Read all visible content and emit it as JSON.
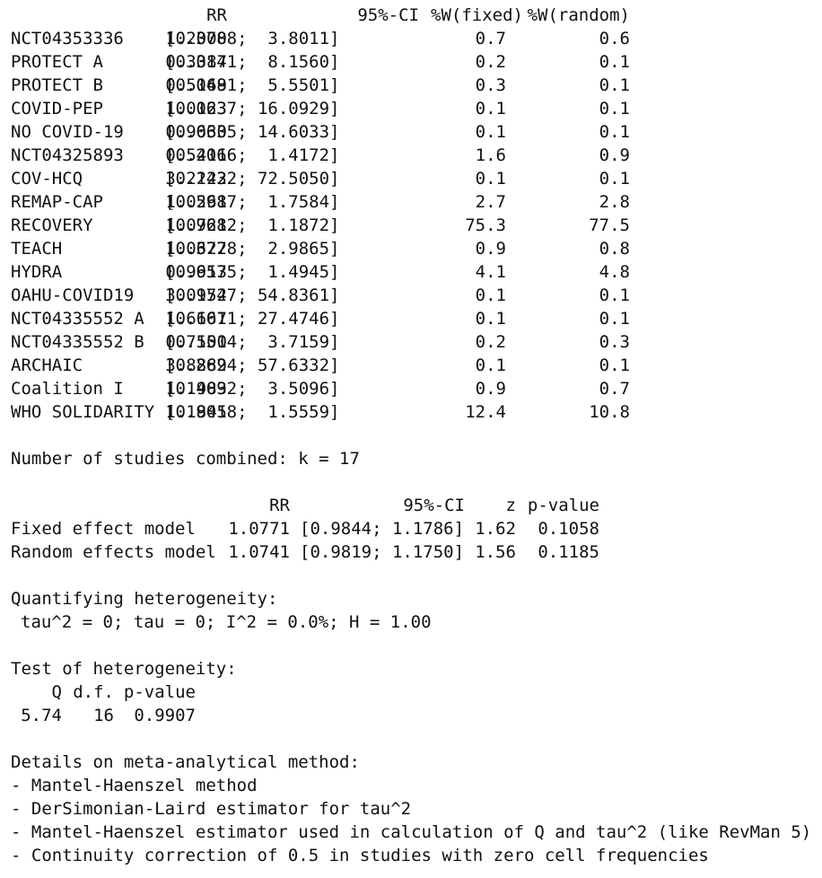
{
  "study_table": {
    "header": {
      "rr": "RR",
      "ci": "95%-CI",
      "w_fixed": "%W(fixed)",
      "w_random": "%W(random)"
    },
    "rows": [
      {
        "study": "NCT04353336",
        "rr": "1.2000",
        "ci": "[0.3788;  3.8011]",
        "w_fixed": "0.7",
        "w_random": "0.6"
      },
      {
        "study": "PROTECT A",
        "rr": "0.3387",
        "ci": "[0.0141;  8.1560]",
        "w_fixed": "0.2",
        "w_random": "0.1"
      },
      {
        "study": "PROTECT B",
        "rr": "0.5169",
        "ci": "[0.0481;  5.5501]",
        "w_fixed": "0.3",
        "w_random": "0.1"
      },
      {
        "study": "COVID-PEP",
        "rr": "1.0123",
        "ci": "[0.0637; 16.0929]",
        "w_fixed": "0.1",
        "w_random": "0.1"
      },
      {
        "study": "NO COVID-19",
        "rr": "0.9630",
        "ci": "[0.0635; 14.6033]",
        "w_fixed": "0.1",
        "w_random": "0.1"
      },
      {
        "study": "NCT04325893",
        "rr": "0.5411",
        "ci": "[0.2066;  1.4172]",
        "w_fixed": "1.6",
        "w_random": "0.9"
      },
      {
        "study": "COV-HCQ",
        "rr": "3.2222",
        "ci": "[0.1432; 72.5050]",
        "w_fixed": "0.1",
        "w_random": "0.1"
      },
      {
        "study": "REMAP-CAP",
        "rr": "1.0261",
        "ci": "[0.5987;  1.7584]",
        "w_fixed": "2.7",
        "w_random": "2.8"
      },
      {
        "study": "RECOVERY",
        "rr": "1.0721",
        "ci": "[0.9682;  1.1872]",
        "w_fixed": "75.3",
        "w_random": "77.5"
      },
      {
        "study": "TEACH",
        "rr": "1.0622",
        "ci": "[0.3778;  2.9865]",
        "w_fixed": "0.9",
        "w_random": "0.8"
      },
      {
        "study": "HYDRA",
        "rr": "0.9913",
        "ci": "[0.6575;  1.4945]",
        "w_fixed": "4.1",
        "w_random": "4.8"
      },
      {
        "study": "OAHU-COVID19",
        "rr": "3.0952",
        "ci": "[0.1747; 54.8361]",
        "w_fixed": "0.1",
        "w_random": "0.1"
      },
      {
        "study": "NCT04335552 A",
        "rr": "1.6667",
        "ci": "[0.1011; 27.4746]",
        "w_fixed": "0.1",
        "w_random": "0.1"
      },
      {
        "study": "NCT04335552 B",
        "rr": "0.7500",
        "ci": "[0.1514;  3.7159]",
        "w_fixed": "0.2",
        "w_random": "0.3"
      },
      {
        "study": "ARCHAIC",
        "rr": "3.8889",
        "ci": "[0.2624; 57.6332]",
        "w_fixed": "0.1",
        "w_random": "0.1"
      },
      {
        "study": "Coalition I",
        "rr": "1.1983",
        "ci": "[0.4092;  3.5096]",
        "w_fixed": "0.9",
        "w_random": "0.7"
      },
      {
        "study": "WHO SOLIDARITY",
        "rr": "1.1845",
        "ci": "[0.9018;  1.5559]",
        "w_fixed": "12.4",
        "w_random": "10.8"
      }
    ]
  },
  "studies_combined": "Number of studies combined: k = 17",
  "model_table": {
    "header": {
      "rr": "RR",
      "ci": "95%-CI",
      "z": "z",
      "p_value": "p-value"
    },
    "rows": [
      {
        "model": "Fixed effect model",
        "rr": "1.0771",
        "ci": "[0.9844; 1.1786]",
        "z": "1.62",
        "p_value": "0.1058"
      },
      {
        "model": "Random effects model",
        "rr": "1.0741",
        "ci": "[0.9819; 1.1750]",
        "z": "1.56",
        "p_value": "0.1185"
      }
    ]
  },
  "heterogeneity": {
    "title": "Quantifying heterogeneity:",
    "stats": "tau^2 = 0; tau = 0; I^2 = 0.0%; H = 1.00"
  },
  "heterogeneity_test": {
    "title": "Test of heterogeneity:",
    "header": {
      "q": "Q",
      "df": "d.f.",
      "p_value": "p-value"
    },
    "values": {
      "q": "5.74",
      "df": "16",
      "p_value": "0.9907"
    }
  },
  "method": {
    "title": "Details on meta-analytical method:",
    "items": [
      "- Mantel-Haenszel method",
      "- DerSimonian-Laird estimator for tau^2",
      "- Mantel-Haenszel estimator used in calculation of Q and tau^2 (like RevMan 5)",
      "- Continuity correction of 0.5 in studies with zero cell frequencies"
    ]
  }
}
